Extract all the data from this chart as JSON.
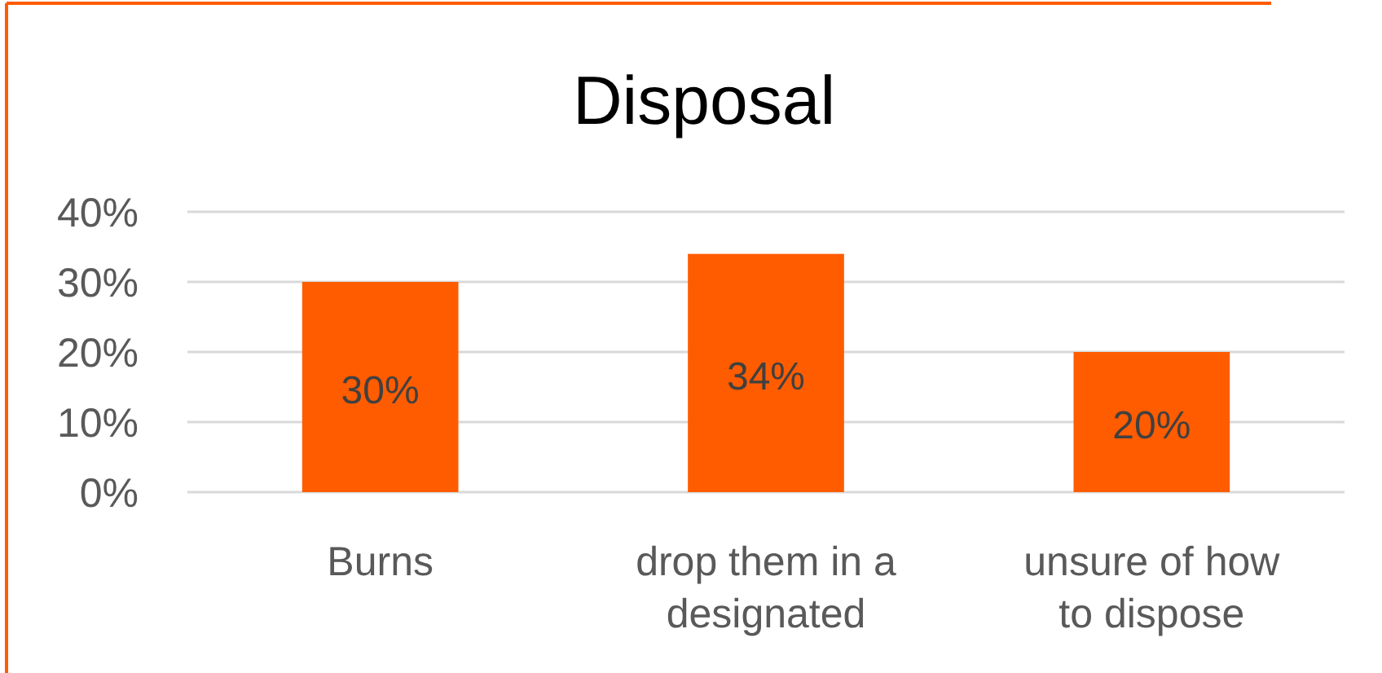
{
  "chart_data": {
    "type": "bar",
    "title": "Disposal",
    "categories": [
      "Burns",
      "drop them in a designated",
      "unsure of how to dispose"
    ],
    "values": [
      30,
      34,
      20
    ],
    "color": "#ff5c00",
    "value_labels": [
      "30%",
      "34%",
      "20%"
    ],
    "ylim": [
      0,
      40
    ],
    "yticks": [
      {
        "value": 0,
        "label": "0%"
      },
      {
        "value": 10,
        "label": "10%"
      },
      {
        "value": 20,
        "label": "20%"
      },
      {
        "value": 30,
        "label": "30%"
      },
      {
        "value": 40,
        "label": "40%"
      }
    ],
    "grid": "y"
  }
}
